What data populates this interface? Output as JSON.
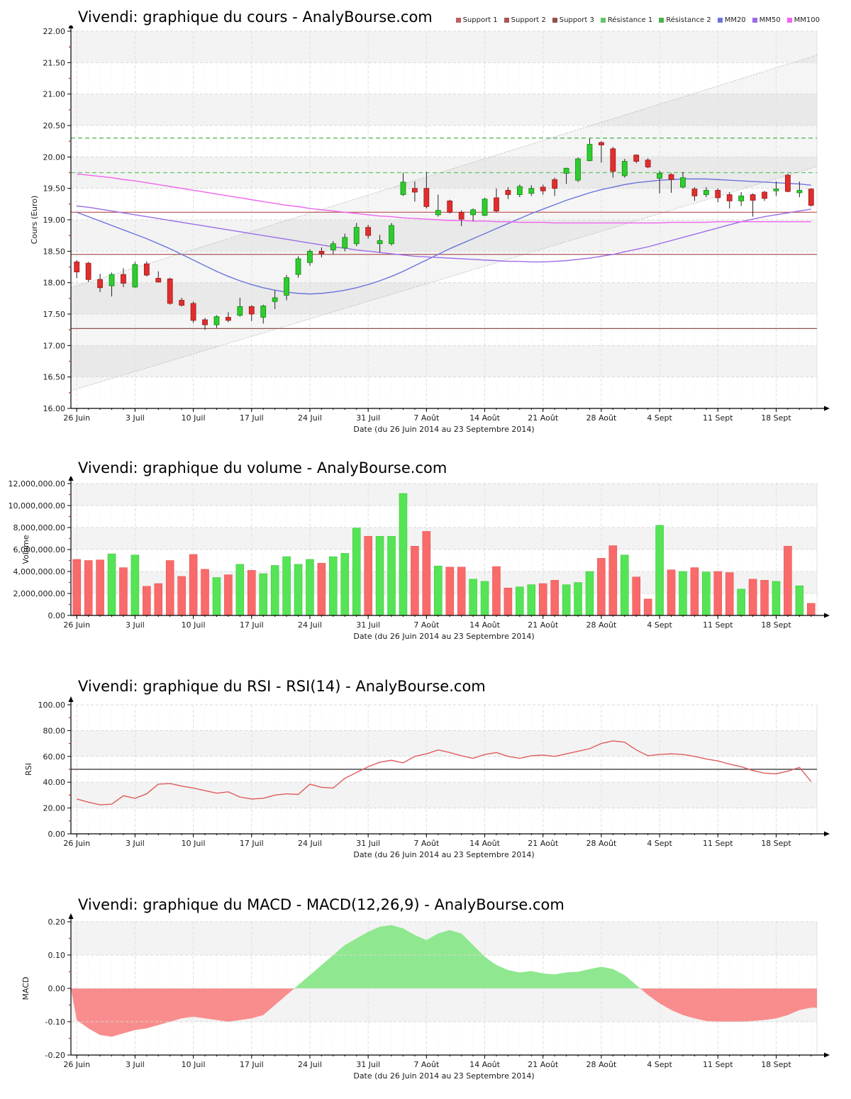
{
  "page": {
    "background": "#ffffff",
    "site": "AnalyBourse.com",
    "instrument": "Vivendi"
  },
  "chart_data": {
    "n_points": 64,
    "xlabel": "Date (du 26 Juin 2014 au 23 Septembre 2014)",
    "x_ticks": {
      "labels": [
        "26 Juin",
        "3 Juil",
        "10 Juil",
        "17 Juil",
        "24 Juil",
        "31 Juil",
        "7 Août",
        "14 Août",
        "21 Août",
        "28 Août",
        "4 Sept",
        "11 Sept",
        "18 Sept"
      ],
      "indices": [
        0,
        5,
        10,
        15,
        20,
        25,
        30,
        35,
        40,
        45,
        50,
        55,
        60
      ]
    },
    "charts": [
      {
        "id": "cours",
        "type": "candlestick",
        "title": "Vivendi: graphique du cours - AnalyBourse.com",
        "ylabel": "Cours (Euro)",
        "ylim": [
          16,
          22
        ],
        "ystep": 0.5,
        "ytick_labels": [
          "16.00",
          "16.50",
          "17.00",
          "17.50",
          "18.00",
          "18.50",
          "19.00",
          "19.50",
          "20.00",
          "20.50",
          "21.00",
          "21.50",
          "22.00"
        ],
        "candle_up_color": "#2ecc2e",
        "candle_down_color": "#e02e2e",
        "support_levels": [
          {
            "label": "Support 1",
            "value": 19.12,
            "color": "#c0605e"
          },
          {
            "label": "Support 2",
            "value": 18.45,
            "color": "#aa5654"
          },
          {
            "label": "Support 3",
            "value": 17.27,
            "color": "#915150"
          }
        ],
        "resistance_levels": [
          {
            "label": "Résistance 1",
            "value": 19.75,
            "color": "#66c466"
          },
          {
            "label": "Résistance 2",
            "value": 20.3,
            "color": "#4eb04e"
          }
        ],
        "channel": {
          "upper": [
            17.92,
            21.62
          ],
          "lower": [
            16.28,
            19.85
          ],
          "line_color": "#bdbdbd",
          "fill": "rgba(120,120,120,0.07)"
        },
        "moving_averages": [
          {
            "label": "MM20",
            "color": "#6b74dd",
            "values": [
              19.12,
              19.05,
              18.98,
              18.91,
              18.84,
              18.77,
              18.7,
              18.62,
              18.54,
              18.45,
              18.36,
              18.27,
              18.18,
              18.1,
              18.03,
              17.97,
              17.92,
              17.88,
              17.85,
              17.83,
              17.82,
              17.83,
              17.85,
              17.88,
              17.92,
              17.97,
              18.03,
              18.1,
              18.18,
              18.27,
              18.36,
              18.45,
              18.54,
              18.62,
              18.7,
              18.78,
              18.86,
              18.94,
              19.02,
              19.1,
              19.17,
              19.24,
              19.31,
              19.37,
              19.43,
              19.48,
              19.52,
              19.56,
              19.59,
              19.61,
              19.63,
              19.64,
              19.65,
              19.65,
              19.65,
              19.64,
              19.63,
              19.62,
              19.61,
              19.6,
              19.59,
              19.58,
              19.57,
              19.55
            ]
          },
          {
            "label": "MM50",
            "color": "#9e6ce6",
            "values": [
              19.22,
              19.2,
              19.17,
              19.14,
              19.11,
              19.08,
              19.05,
              19.02,
              18.99,
              18.96,
              18.93,
              18.9,
              18.87,
              18.84,
              18.81,
              18.78,
              18.75,
              18.72,
              18.69,
              18.66,
              18.63,
              18.6,
              18.57,
              18.55,
              18.52,
              18.5,
              18.48,
              18.46,
              18.44,
              18.42,
              18.41,
              18.4,
              18.39,
              18.38,
              18.37,
              18.36,
              18.35,
              18.34,
              18.34,
              18.33,
              18.33,
              18.34,
              18.35,
              18.37,
              18.39,
              18.42,
              18.45,
              18.49,
              18.53,
              18.57,
              18.62,
              18.67,
              18.72,
              18.77,
              18.82,
              18.87,
              18.92,
              18.97,
              19.01,
              19.05,
              19.08,
              19.11,
              19.14,
              19.17
            ]
          },
          {
            "label": "MM100",
            "color": "#f063f0",
            "values": [
              19.73,
              19.71,
              19.69,
              19.67,
              19.64,
              19.62,
              19.59,
              19.56,
              19.53,
              19.5,
              19.47,
              19.44,
              19.41,
              19.38,
              19.35,
              19.32,
              19.29,
              19.26,
              19.23,
              19.21,
              19.18,
              19.16,
              19.14,
              19.12,
              19.1,
              19.08,
              19.06,
              19.05,
              19.03,
              19.02,
              19.01,
              19.0,
              18.99,
              18.99,
              18.98,
              18.98,
              18.97,
              18.97,
              18.96,
              18.96,
              18.96,
              18.95,
              18.95,
              18.95,
              18.95,
              18.95,
              18.95,
              18.95,
              18.95,
              18.95,
              18.95,
              18.96,
              18.96,
              18.96,
              18.96,
              18.97,
              18.97,
              18.97,
              18.97,
              18.97,
              18.97,
              18.97,
              18.97,
              18.97
            ]
          }
        ],
        "candles": [
          [
            18.33,
            18.36,
            18.07,
            18.17
          ],
          [
            18.31,
            18.33,
            18.01,
            18.05
          ],
          [
            18.05,
            18.14,
            17.85,
            17.92
          ],
          [
            17.95,
            18.16,
            17.78,
            18.13
          ],
          [
            18.13,
            18.23,
            17.93,
            17.99
          ],
          [
            17.93,
            18.33,
            17.92,
            18.29
          ],
          [
            18.3,
            18.34,
            18.1,
            18.12
          ],
          [
            18.07,
            18.18,
            18.0,
            18.01
          ],
          [
            18.06,
            18.08,
            17.65,
            17.67
          ],
          [
            17.72,
            17.76,
            17.62,
            17.64
          ],
          [
            17.67,
            17.7,
            17.36,
            17.4
          ],
          [
            17.41,
            17.44,
            17.25,
            17.33
          ],
          [
            17.33,
            17.48,
            17.28,
            17.46
          ],
          [
            17.45,
            17.53,
            17.37,
            17.4
          ],
          [
            17.48,
            17.76,
            17.46,
            17.62
          ],
          [
            17.62,
            17.64,
            17.39,
            17.5
          ],
          [
            17.45,
            17.65,
            17.35,
            17.63
          ],
          [
            17.7,
            17.88,
            17.58,
            17.76
          ],
          [
            17.8,
            18.12,
            17.72,
            18.08
          ],
          [
            18.13,
            18.42,
            18.08,
            18.38
          ],
          [
            18.32,
            18.53,
            18.27,
            18.5
          ],
          [
            18.5,
            18.56,
            18.4,
            18.46
          ],
          [
            18.52,
            18.66,
            18.45,
            18.62
          ],
          [
            18.55,
            18.78,
            18.5,
            18.72
          ],
          [
            18.62,
            18.95,
            18.58,
            18.88
          ],
          [
            18.88,
            18.92,
            18.7,
            18.75
          ],
          [
            18.62,
            18.76,
            18.48,
            18.67
          ],
          [
            18.62,
            18.95,
            18.59,
            18.91
          ],
          [
            19.4,
            19.75,
            19.38,
            19.6
          ],
          [
            19.5,
            19.61,
            19.29,
            19.44
          ],
          [
            19.5,
            19.76,
            19.18,
            19.21
          ],
          [
            19.08,
            19.4,
            19.05,
            19.15
          ],
          [
            19.3,
            19.32,
            19.1,
            19.12
          ],
          [
            19.12,
            19.15,
            18.9,
            19.01
          ],
          [
            19.08,
            19.18,
            18.98,
            19.16
          ],
          [
            19.07,
            19.35,
            19.06,
            19.33
          ],
          [
            19.35,
            19.5,
            19.12,
            19.14
          ],
          [
            19.47,
            19.52,
            19.33,
            19.4
          ],
          [
            19.4,
            19.56,
            19.36,
            19.53
          ],
          [
            19.42,
            19.55,
            19.38,
            19.5
          ],
          [
            19.52,
            19.56,
            19.4,
            19.46
          ],
          [
            19.64,
            19.67,
            19.38,
            19.5
          ],
          [
            19.74,
            19.83,
            19.57,
            19.82
          ],
          [
            19.63,
            19.99,
            19.6,
            19.97
          ],
          [
            19.94,
            20.29,
            19.93,
            20.2
          ],
          [
            20.23,
            20.25,
            19.91,
            20.19
          ],
          [
            20.13,
            20.16,
            19.67,
            19.77
          ],
          [
            19.7,
            19.97,
            19.67,
            19.93
          ],
          [
            20.03,
            20.04,
            19.9,
            19.93
          ],
          [
            19.95,
            19.98,
            19.82,
            19.84
          ],
          [
            19.66,
            19.78,
            19.42,
            19.74
          ],
          [
            19.72,
            19.74,
            19.43,
            19.64
          ],
          [
            19.52,
            19.76,
            19.5,
            19.67
          ],
          [
            19.49,
            19.52,
            19.3,
            19.38
          ],
          [
            19.4,
            19.52,
            19.36,
            19.47
          ],
          [
            19.47,
            19.5,
            19.28,
            19.35
          ],
          [
            19.4,
            19.44,
            19.18,
            19.3
          ],
          [
            19.3,
            19.44,
            19.22,
            19.38
          ],
          [
            19.4,
            19.42,
            19.05,
            19.31
          ],
          [
            19.44,
            19.46,
            19.3,
            19.34
          ],
          [
            19.46,
            19.61,
            19.38,
            19.49
          ],
          [
            19.71,
            19.73,
            19.44,
            19.45
          ],
          [
            19.43,
            19.61,
            19.36,
            19.47
          ],
          [
            19.49,
            19.5,
            19.21,
            19.23
          ]
        ]
      },
      {
        "id": "volume",
        "type": "bar",
        "title": "Vivendi: graphique du volume - AnalyBourse.com",
        "ylabel": "Volume",
        "ylim": [
          0,
          12000000
        ],
        "ystep": 2000000,
        "ytick_labels": [
          "0.00",
          "2,000,000.00",
          "4,000,000.00",
          "6,000,000.00",
          "8,000,000.00",
          "10,000,000.00",
          "12,000,000.00"
        ],
        "up_color": "#55e455",
        "down_color": "#f96a6a",
        "values_millions": [
          5.1,
          5.0,
          5.05,
          5.6,
          4.35,
          5.5,
          2.65,
          2.9,
          5.0,
          3.55,
          5.55,
          4.2,
          3.45,
          3.7,
          4.65,
          4.1,
          3.8,
          4.55,
          5.35,
          4.65,
          5.1,
          4.75,
          5.35,
          5.65,
          7.95,
          7.2,
          7.2,
          7.2,
          11.1,
          6.3,
          7.65,
          4.5,
          4.4,
          4.4,
          3.3,
          3.1,
          4.45,
          2.5,
          2.6,
          2.8,
          2.9,
          3.2,
          2.8,
          3.0,
          4.0,
          5.2,
          6.35,
          5.5,
          3.5,
          1.5,
          8.2,
          4.15,
          4.0,
          4.35,
          3.95,
          4.0,
          3.9,
          2.4,
          3.3,
          3.2,
          3.1,
          6.3,
          2.7,
          1.1
        ]
      },
      {
        "id": "rsi",
        "type": "line",
        "title": "Vivendi: graphique du RSI - RSI(14) - AnalyBourse.com",
        "ylabel": "RSI",
        "ylim": [
          0,
          100
        ],
        "ystep": 20,
        "ytick_labels": [
          "0.00",
          "20.00",
          "40.00",
          "60.00",
          "80.00",
          "100.00"
        ],
        "midline": 50,
        "line_color": "#e05c5c",
        "values": [
          27,
          24.5,
          22.5,
          23,
          29.5,
          27.5,
          31,
          38.5,
          39,
          37,
          35.5,
          33.5,
          31.5,
          32.5,
          28.5,
          27,
          27.5,
          30,
          31,
          30.5,
          38.5,
          36,
          35.5,
          43,
          47.5,
          52,
          55.5,
          57,
          55,
          60,
          62,
          65,
          63,
          60.5,
          58.5,
          61.5,
          63,
          60,
          58.5,
          60.5,
          61,
          60,
          62,
          64,
          66,
          70,
          72,
          71,
          65,
          60.5,
          61.5,
          62,
          61.5,
          60,
          58,
          56.5,
          54,
          52,
          49,
          47,
          46.5,
          48.5,
          51.5,
          40.5
        ]
      },
      {
        "id": "macd",
        "type": "area",
        "title": "Vivendi: graphique du MACD - MACD(12,26,9) - AnalyBourse.com",
        "ylabel": "MACD",
        "ylim": [
          -0.2,
          0.2
        ],
        "ystep": 0.1,
        "ytick_labels": [
          "-0.20",
          "-0.10",
          "0.00",
          "0.10",
          "0.20"
        ],
        "pos_color": "#8fe88f",
        "neg_color": "#f98d8d",
        "values": [
          -0.095,
          -0.12,
          -0.14,
          -0.145,
          -0.135,
          -0.125,
          -0.12,
          -0.11,
          -0.1,
          -0.09,
          -0.085,
          -0.09,
          -0.095,
          -0.1,
          -0.095,
          -0.09,
          -0.08,
          -0.05,
          -0.02,
          0.01,
          0.04,
          0.07,
          0.1,
          0.13,
          0.15,
          0.17,
          0.185,
          0.19,
          0.18,
          0.16,
          0.145,
          0.165,
          0.175,
          0.165,
          0.13,
          0.095,
          0.07,
          0.055,
          0.048,
          0.052,
          0.045,
          0.042,
          0.048,
          0.05,
          0.058,
          0.065,
          0.058,
          0.04,
          0.01,
          -0.02,
          -0.045,
          -0.065,
          -0.08,
          -0.09,
          -0.098,
          -0.1,
          -0.1,
          -0.1,
          -0.098,
          -0.095,
          -0.09,
          -0.08,
          -0.065,
          -0.058
        ]
      }
    ]
  }
}
